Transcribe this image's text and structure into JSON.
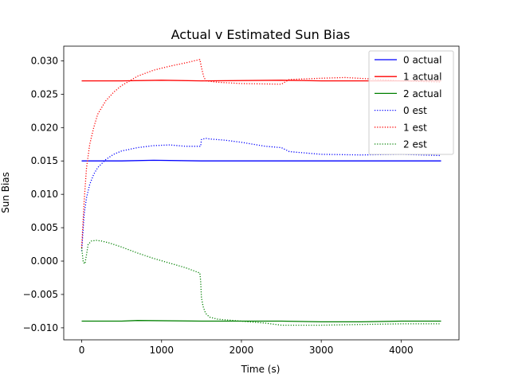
{
  "chart_data": {
    "type": "line",
    "title": "Actual v Estimated Sun Bias",
    "xlabel": "Time (s)",
    "ylabel": "Sun Bias",
    "xlim": [
      -225,
      4725
    ],
    "ylim": [
      -0.0118,
      0.0322
    ],
    "xticks": [
      0,
      1000,
      2000,
      3000,
      4000
    ],
    "xtick_labels": [
      "0",
      "1000",
      "2000",
      "3000",
      "4000"
    ],
    "yticks": [
      -0.01,
      -0.005,
      0.0,
      0.005,
      0.01,
      0.015,
      0.02,
      0.025,
      0.03
    ],
    "ytick_labels": [
      "−0.010",
      "−0.005",
      "0.000",
      "0.005",
      "0.010",
      "0.015",
      "0.020",
      "0.025",
      "0.030"
    ],
    "grid": false,
    "legend_position": "top-right",
    "series": [
      {
        "name": "0 actual",
        "color": "#0000ff",
        "style": "solid",
        "x": [
          0,
          500,
          900,
          1500,
          2500,
          3000,
          3500,
          4000,
          4500
        ],
        "y": [
          0.015,
          0.015,
          0.0151,
          0.015,
          0.015,
          0.015,
          0.015,
          0.015,
          0.015
        ]
      },
      {
        "name": "1 actual",
        "color": "#ff0000",
        "style": "solid",
        "x": [
          0,
          500,
          1000,
          1500,
          2500,
          3000,
          3500,
          4000,
          4500
        ],
        "y": [
          0.027,
          0.027,
          0.0271,
          0.027,
          0.0271,
          0.027,
          0.027,
          0.027,
          0.027
        ]
      },
      {
        "name": "2 actual",
        "color": "#008000",
        "style": "solid",
        "x": [
          0,
          500,
          700,
          1500,
          2500,
          3000,
          3500,
          4000,
          4500
        ],
        "y": [
          -0.009,
          -0.009,
          -0.0089,
          -0.009,
          -0.009,
          -0.0091,
          -0.0091,
          -0.009,
          -0.009
        ]
      },
      {
        "name": "0 est",
        "color": "#0000ff",
        "style": "dotted",
        "x": [
          0,
          30,
          60,
          100,
          150,
          200,
          300,
          400,
          500,
          700,
          900,
          1100,
          1300,
          1490,
          1500,
          1550,
          1600,
          1800,
          2000,
          2300,
          2500,
          2600,
          3000,
          3500,
          4000,
          4500
        ],
        "y": [
          0.0015,
          0.007,
          0.0095,
          0.0115,
          0.013,
          0.014,
          0.0152,
          0.016,
          0.0165,
          0.017,
          0.0173,
          0.0174,
          0.0172,
          0.0172,
          0.0182,
          0.0184,
          0.0183,
          0.0181,
          0.0178,
          0.0172,
          0.017,
          0.0164,
          0.016,
          0.0159,
          0.016,
          0.0158
        ]
      },
      {
        "name": "1 est",
        "color": "#ff0000",
        "style": "dotted",
        "x": [
          0,
          30,
          60,
          100,
          150,
          200,
          300,
          400,
          500,
          700,
          900,
          1100,
          1300,
          1480,
          1500,
          1530,
          1560,
          1700,
          2000,
          2500,
          2600,
          3000,
          3300,
          3600,
          4000,
          4500
        ],
        "y": [
          0.002,
          0.009,
          0.014,
          0.0175,
          0.02,
          0.022,
          0.024,
          0.0253,
          0.0263,
          0.0277,
          0.0286,
          0.0292,
          0.0297,
          0.0302,
          0.029,
          0.0275,
          0.027,
          0.0268,
          0.0266,
          0.0265,
          0.0272,
          0.0274,
          0.0275,
          0.0273,
          0.027,
          0.0268
        ]
      },
      {
        "name": "2 est",
        "color": "#008000",
        "style": "dotted",
        "x": [
          0,
          20,
          40,
          60,
          80,
          120,
          180,
          250,
          350,
          500,
          700,
          900,
          1100,
          1300,
          1480,
          1490,
          1500,
          1520,
          1550,
          1600,
          1700,
          1900,
          2100,
          2300,
          2500,
          3000,
          3500,
          4000,
          4500
        ],
        "y": [
          0.002,
          -0.0002,
          -0.0004,
          0.001,
          0.0025,
          0.003,
          0.0031,
          0.003,
          0.0027,
          0.0021,
          0.0012,
          0.0004,
          -0.0003,
          -0.001,
          -0.0018,
          -0.003,
          -0.0055,
          -0.0068,
          -0.0078,
          -0.0084,
          -0.0087,
          -0.0089,
          -0.0091,
          -0.0093,
          -0.0096,
          -0.0096,
          -0.0095,
          -0.0094,
          -0.0094
        ]
      }
    ]
  }
}
